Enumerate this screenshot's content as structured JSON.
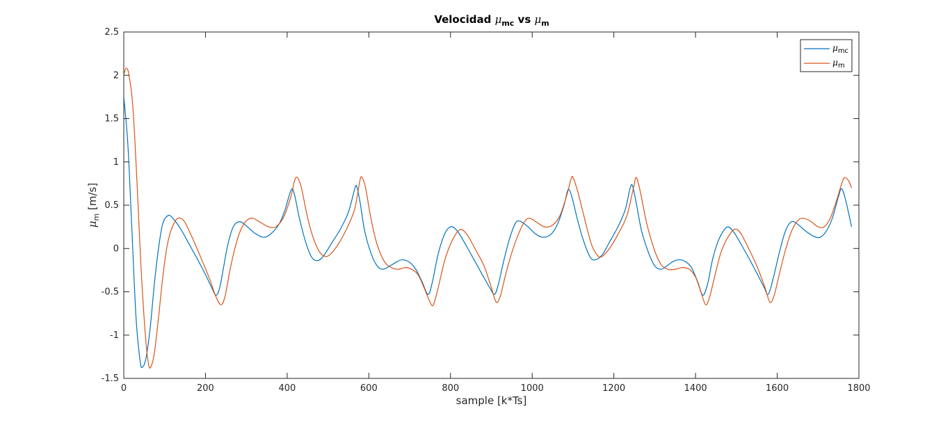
{
  "chart_data": {
    "type": "line",
    "title": {
      "prefix": "Velocidad ",
      "sym1": "μ",
      "sub1": "mc",
      "mid": " vs ",
      "sym2": "μ",
      "sub2": "m"
    },
    "xlabel": "sample [k*Ts]",
    "ylabel": {
      "sym": "μ",
      "sub": "m",
      "rest": " [m/s]"
    },
    "xlim": [
      0,
      1800
    ],
    "ylim": [
      -1.5,
      2.5
    ],
    "xticks": [
      0,
      200,
      400,
      600,
      800,
      1000,
      1200,
      1400,
      1600,
      1800
    ],
    "yticks": [
      -1.5,
      -1,
      -0.5,
      0,
      0.5,
      1,
      1.5,
      2,
      2.5
    ],
    "xtick_labels": [
      "0",
      "200",
      "400",
      "600",
      "800",
      "1000",
      "1200",
      "1400",
      "1600",
      "1800"
    ],
    "ytick_labels": [
      "-1.5",
      "-1",
      "-0.5",
      "0",
      "0.5",
      "1",
      "1.5",
      "2",
      "2.5"
    ],
    "grid": false,
    "legend_position": "top-right",
    "series": [
      {
        "name": {
          "sym": "μ",
          "sub": "mc"
        },
        "color": "#0072BD",
        "points": [
          [
            0,
            1.75
          ],
          [
            10,
            1.2
          ],
          [
            20,
            0.2
          ],
          [
            30,
            -0.8
          ],
          [
            40,
            -1.3
          ],
          [
            46,
            -1.37
          ],
          [
            55,
            -1.25
          ],
          [
            65,
            -0.9
          ],
          [
            75,
            -0.4
          ],
          [
            85,
            0.0
          ],
          [
            95,
            0.28
          ],
          [
            108,
            0.38
          ],
          [
            120,
            0.35
          ],
          [
            140,
            0.22
          ],
          [
            160,
            0.05
          ],
          [
            180,
            -0.12
          ],
          [
            200,
            -0.3
          ],
          [
            215,
            -0.45
          ],
          [
            226,
            -0.54
          ],
          [
            235,
            -0.45
          ],
          [
            245,
            -0.2
          ],
          [
            255,
            0.05
          ],
          [
            268,
            0.25
          ],
          [
            283,
            0.31
          ],
          [
            298,
            0.27
          ],
          [
            320,
            0.18
          ],
          [
            342,
            0.13
          ],
          [
            360,
            0.17
          ],
          [
            380,
            0.28
          ],
          [
            395,
            0.45
          ],
          [
            410,
            0.68
          ],
          [
            418,
            0.62
          ],
          [
            430,
            0.35
          ],
          [
            445,
            0.08
          ],
          [
            460,
            -0.1
          ],
          [
            475,
            -0.14
          ],
          [
            490,
            -0.08
          ],
          [
            510,
            0.07
          ],
          [
            530,
            0.22
          ],
          [
            550,
            0.42
          ],
          [
            565,
            0.68
          ],
          [
            570,
            0.72
          ],
          [
            578,
            0.55
          ],
          [
            590,
            0.2
          ],
          [
            605,
            -0.05
          ],
          [
            620,
            -0.2
          ],
          [
            635,
            -0.24
          ],
          [
            652,
            -0.2
          ],
          [
            670,
            -0.15
          ],
          [
            683,
            -0.13
          ],
          [
            700,
            -0.16
          ],
          [
            715,
            -0.24
          ],
          [
            730,
            -0.38
          ],
          [
            745,
            -0.53
          ],
          [
            755,
            -0.4
          ],
          [
            768,
            -0.1
          ],
          [
            780,
            0.1
          ],
          [
            792,
            0.22
          ],
          [
            805,
            0.25
          ],
          [
            820,
            0.18
          ],
          [
            840,
            0.02
          ],
          [
            860,
            -0.15
          ],
          [
            880,
            -0.32
          ],
          [
            897,
            -0.46
          ],
          [
            908,
            -0.53
          ],
          [
            918,
            -0.4
          ],
          [
            930,
            -0.15
          ],
          [
            945,
            0.12
          ],
          [
            960,
            0.3
          ],
          [
            973,
            0.31
          ],
          [
            990,
            0.25
          ],
          [
            1008,
            0.17
          ],
          [
            1025,
            0.13
          ],
          [
            1045,
            0.16
          ],
          [
            1062,
            0.28
          ],
          [
            1078,
            0.5
          ],
          [
            1088,
            0.68
          ],
          [
            1097,
            0.6
          ],
          [
            1110,
            0.35
          ],
          [
            1125,
            0.1
          ],
          [
            1142,
            -0.1
          ],
          [
            1155,
            -0.13
          ],
          [
            1172,
            -0.07
          ],
          [
            1190,
            0.08
          ],
          [
            1210,
            0.25
          ],
          [
            1228,
            0.45
          ],
          [
            1240,
            0.7
          ],
          [
            1246,
            0.72
          ],
          [
            1255,
            0.52
          ],
          [
            1268,
            0.2
          ],
          [
            1285,
            -0.05
          ],
          [
            1300,
            -0.2
          ],
          [
            1315,
            -0.24
          ],
          [
            1330,
            -0.2
          ],
          [
            1345,
            -0.15
          ],
          [
            1360,
            -0.13
          ],
          [
            1375,
            -0.15
          ],
          [
            1390,
            -0.22
          ],
          [
            1405,
            -0.38
          ],
          [
            1418,
            -0.54
          ],
          [
            1430,
            -0.4
          ],
          [
            1442,
            -0.12
          ],
          [
            1455,
            0.08
          ],
          [
            1468,
            0.2
          ],
          [
            1480,
            0.25
          ],
          [
            1495,
            0.18
          ],
          [
            1515,
            0.02
          ],
          [
            1535,
            -0.15
          ],
          [
            1555,
            -0.33
          ],
          [
            1568,
            -0.45
          ],
          [
            1578,
            -0.53
          ],
          [
            1590,
            -0.35
          ],
          [
            1605,
            -0.05
          ],
          [
            1620,
            0.2
          ],
          [
            1635,
            0.31
          ],
          [
            1650,
            0.28
          ],
          [
            1670,
            0.2
          ],
          [
            1690,
            0.14
          ],
          [
            1705,
            0.13
          ],
          [
            1720,
            0.2
          ],
          [
            1735,
            0.35
          ],
          [
            1750,
            0.6
          ],
          [
            1758,
            0.69
          ],
          [
            1768,
            0.55
          ],
          [
            1782,
            0.25
          ]
        ]
      },
      {
        "name": {
          "sym": "μ",
          "sub": "m"
        },
        "color": "#D95319",
        "points": [
          [
            0,
            2.0
          ],
          [
            5,
            2.08
          ],
          [
            12,
            2.02
          ],
          [
            22,
            1.65
          ],
          [
            32,
            0.8
          ],
          [
            42,
            -0.2
          ],
          [
            52,
            -0.95
          ],
          [
            60,
            -1.32
          ],
          [
            66,
            -1.37
          ],
          [
            75,
            -1.2
          ],
          [
            85,
            -0.8
          ],
          [
            95,
            -0.35
          ],
          [
            105,
            0.0
          ],
          [
            115,
            0.2
          ],
          [
            128,
            0.33
          ],
          [
            138,
            0.35
          ],
          [
            150,
            0.3
          ],
          [
            170,
            0.1
          ],
          [
            190,
            -0.12
          ],
          [
            210,
            -0.35
          ],
          [
            225,
            -0.55
          ],
          [
            238,
            -0.65
          ],
          [
            248,
            -0.55
          ],
          [
            260,
            -0.25
          ],
          [
            272,
            0.0
          ],
          [
            285,
            0.2
          ],
          [
            300,
            0.32
          ],
          [
            315,
            0.35
          ],
          [
            335,
            0.3
          ],
          [
            355,
            0.25
          ],
          [
            372,
            0.25
          ],
          [
            390,
            0.35
          ],
          [
            408,
            0.58
          ],
          [
            418,
            0.78
          ],
          [
            425,
            0.82
          ],
          [
            435,
            0.7
          ],
          [
            448,
            0.4
          ],
          [
            462,
            0.15
          ],
          [
            478,
            -0.03
          ],
          [
            492,
            -0.09
          ],
          [
            505,
            -0.07
          ],
          [
            525,
            0.05
          ],
          [
            545,
            0.22
          ],
          [
            565,
            0.45
          ],
          [
            578,
            0.78
          ],
          [
            583,
            0.82
          ],
          [
            592,
            0.7
          ],
          [
            605,
            0.35
          ],
          [
            620,
            0.05
          ],
          [
            638,
            -0.15
          ],
          [
            655,
            -0.22
          ],
          [
            672,
            -0.24
          ],
          [
            690,
            -0.22
          ],
          [
            705,
            -0.24
          ],
          [
            720,
            -0.3
          ],
          [
            735,
            -0.45
          ],
          [
            750,
            -0.62
          ],
          [
            758,
            -0.65
          ],
          [
            770,
            -0.45
          ],
          [
            785,
            -0.15
          ],
          [
            800,
            0.05
          ],
          [
            815,
            0.18
          ],
          [
            827,
            0.22
          ],
          [
            842,
            0.15
          ],
          [
            862,
            -0.02
          ],
          [
            882,
            -0.2
          ],
          [
            900,
            -0.45
          ],
          [
            912,
            -0.62
          ],
          [
            922,
            -0.55
          ],
          [
            935,
            -0.3
          ],
          [
            950,
            -0.05
          ],
          [
            965,
            0.15
          ],
          [
            980,
            0.3
          ],
          [
            993,
            0.35
          ],
          [
            1012,
            0.3
          ],
          [
            1030,
            0.25
          ],
          [
            1050,
            0.27
          ],
          [
            1068,
            0.38
          ],
          [
            1085,
            0.62
          ],
          [
            1095,
            0.8
          ],
          [
            1100,
            0.82
          ],
          [
            1112,
            0.65
          ],
          [
            1128,
            0.35
          ],
          [
            1145,
            0.05
          ],
          [
            1160,
            -0.08
          ],
          [
            1172,
            -0.09
          ],
          [
            1192,
            0.02
          ],
          [
            1212,
            0.18
          ],
          [
            1232,
            0.38
          ],
          [
            1248,
            0.7
          ],
          [
            1255,
            0.82
          ],
          [
            1265,
            0.65
          ],
          [
            1280,
            0.3
          ],
          [
            1298,
            0.0
          ],
          [
            1315,
            -0.18
          ],
          [
            1332,
            -0.24
          ],
          [
            1350,
            -0.24
          ],
          [
            1368,
            -0.22
          ],
          [
            1385,
            -0.24
          ],
          [
            1400,
            -0.33
          ],
          [
            1413,
            -0.5
          ],
          [
            1425,
            -0.65
          ],
          [
            1435,
            -0.55
          ],
          [
            1448,
            -0.3
          ],
          [
            1462,
            -0.05
          ],
          [
            1478,
            0.12
          ],
          [
            1495,
            0.22
          ],
          [
            1510,
            0.18
          ],
          [
            1530,
            0.0
          ],
          [
            1550,
            -0.2
          ],
          [
            1570,
            -0.45
          ],
          [
            1582,
            -0.62
          ],
          [
            1592,
            -0.55
          ],
          [
            1605,
            -0.3
          ],
          [
            1620,
            -0.02
          ],
          [
            1635,
            0.2
          ],
          [
            1650,
            0.32
          ],
          [
            1662,
            0.35
          ],
          [
            1680,
            0.32
          ],
          [
            1700,
            0.25
          ],
          [
            1715,
            0.25
          ],
          [
            1730,
            0.35
          ],
          [
            1745,
            0.55
          ],
          [
            1758,
            0.75
          ],
          [
            1765,
            0.82
          ],
          [
            1775,
            0.78
          ],
          [
            1782,
            0.7
          ]
        ]
      }
    ]
  }
}
